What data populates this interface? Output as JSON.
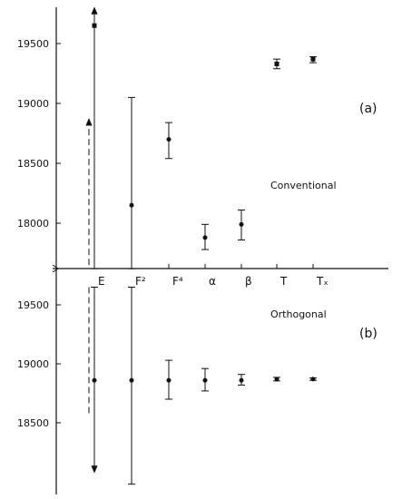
{
  "chart_data": [
    {
      "type": "errorbar",
      "panel_label": "(a)",
      "annotation": "Conventional",
      "categories": [
        "E",
        "F²",
        "F⁴",
        "α",
        "β",
        "T",
        "Tₓ"
      ],
      "yticks": [
        18000,
        18500,
        19000,
        19500
      ],
      "ylim": [
        17620,
        19800
      ],
      "points": [
        {
          "category": "E",
          "y": 19650,
          "lower": 17620,
          "upper": 19800,
          "lower_arrow": false,
          "upper_arrow": true,
          "dashed": false
        },
        {
          "category": "E",
          "y": null,
          "lower": 17620,
          "upper": 18870,
          "lower_arrow": false,
          "upper_arrow": true,
          "dashed": true
        },
        {
          "category": "F²",
          "y": 18150,
          "lower": 17620,
          "upper": 19050,
          "lower_arrow": false,
          "upper_arrow": false,
          "dashed": false
        },
        {
          "category": "F⁴",
          "y": 18700,
          "lower": 18540,
          "upper": 18840,
          "lower_arrow": false,
          "upper_arrow": false,
          "dashed": false
        },
        {
          "category": "α",
          "y": 17880,
          "lower": 17780,
          "upper": 17990,
          "lower_arrow": false,
          "upper_arrow": false,
          "dashed": false
        },
        {
          "category": "β",
          "y": 17990,
          "lower": 17860,
          "upper": 18110,
          "lower_arrow": false,
          "upper_arrow": false,
          "dashed": false
        },
        {
          "category": "T",
          "y": 19330,
          "lower": 19290,
          "upper": 19370,
          "lower_arrow": false,
          "upper_arrow": false,
          "dashed": false
        },
        {
          "category": "Tₓ",
          "y": 19370,
          "lower": 19340,
          "upper": 19390,
          "lower_arrow": false,
          "upper_arrow": false,
          "dashed": false
        }
      ]
    },
    {
      "type": "errorbar",
      "panel_label": "(b)",
      "annotation": "Orthogonal",
      "categories": [
        "E",
        "F²",
        "F⁴",
        "α",
        "β",
        "T",
        "Tₓ"
      ],
      "yticks": [
        18500,
        19000,
        19500
      ],
      "ylim": [
        18050,
        19650
      ],
      "points": [
        {
          "category": "E",
          "y": 18860,
          "lower": 18080,
          "upper": 19650,
          "lower_arrow": true,
          "upper_arrow": false,
          "dashed": false
        },
        {
          "category": "E",
          "y": null,
          "lower": 18570,
          "upper": 19650,
          "lower_arrow": false,
          "upper_arrow": false,
          "dashed": true
        },
        {
          "category": "F²",
          "y": 18860,
          "lower": 17980,
          "upper": 19650,
          "lower_arrow": false,
          "upper_arrow": false,
          "dashed": false
        },
        {
          "category": "F⁴",
          "y": 18860,
          "lower": 18700,
          "upper": 19030,
          "lower_arrow": false,
          "upper_arrow": false,
          "dashed": false
        },
        {
          "category": "α",
          "y": 18860,
          "lower": 18770,
          "upper": 18960,
          "lower_arrow": false,
          "upper_arrow": false,
          "dashed": false
        },
        {
          "category": "β",
          "y": 18860,
          "lower": 18820,
          "upper": 18910,
          "lower_arrow": false,
          "upper_arrow": false,
          "dashed": false
        },
        {
          "category": "T",
          "y": 18870,
          "lower": 18855,
          "upper": 18885,
          "lower_arrow": false,
          "upper_arrow": false,
          "dashed": false
        },
        {
          "category": "Tₓ",
          "y": 18870,
          "lower": 18860,
          "upper": 18880,
          "lower_arrow": false,
          "upper_arrow": false,
          "dashed": false
        }
      ]
    }
  ]
}
